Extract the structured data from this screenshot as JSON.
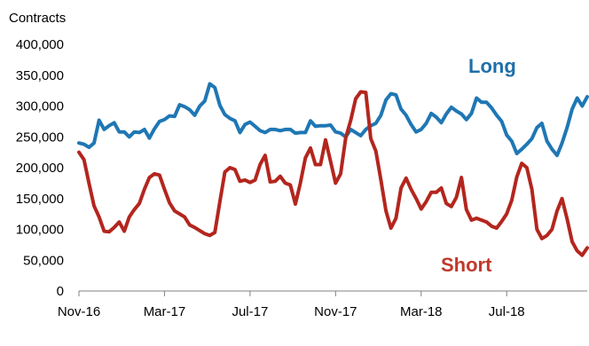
{
  "chart_data": {
    "type": "line",
    "ylabel": "Contracts",
    "ylim": [
      0,
      400000
    ],
    "y_ticks": [
      0,
      50000,
      100000,
      150000,
      200000,
      250000,
      300000,
      350000,
      400000
    ],
    "y_tick_labels": [
      "0",
      "50,000",
      "100,000",
      "150,000",
      "200,000",
      "250,000",
      "300,000",
      "350,000",
      "400,000"
    ],
    "x_ticks": [
      "Nov-16",
      "Mar-17",
      "Jul-17",
      "Nov-17",
      "Mar-18",
      "Jul-18"
    ],
    "x_tick_index": [
      0,
      17,
      34,
      51,
      68,
      85
    ],
    "x_count": 102,
    "grid": false,
    "series": [
      {
        "name": "Long",
        "color": "#1f77b4",
        "label_color": "#1f6fa8",
        "values": [
          240000,
          238000,
          233000,
          240000,
          277000,
          262000,
          268000,
          273000,
          258000,
          258000,
          250000,
          258000,
          257000,
          262000,
          248000,
          263000,
          275000,
          278000,
          284000,
          283000,
          302000,
          299000,
          294000,
          285000,
          300000,
          308000,
          336000,
          330000,
          301000,
          286000,
          280000,
          276000,
          257000,
          270000,
          274000,
          267000,
          260000,
          257000,
          262000,
          262000,
          260000,
          262000,
          262000,
          256000,
          257000,
          257000,
          276000,
          267000,
          268000,
          268000,
          269000,
          258000,
          256000,
          250000,
          262000,
          257000,
          252000,
          262000,
          268000,
          272000,
          285000,
          310000,
          320000,
          318000,
          295000,
          285000,
          270000,
          258000,
          262000,
          272000,
          288000,
          282000,
          273000,
          287000,
          298000,
          292000,
          287000,
          278000,
          288000,
          313000,
          306000,
          306000,
          297000,
          285000,
          275000,
          253000,
          243000,
          223000,
          230000,
          238000,
          247000,
          265000,
          272000,
          243000,
          230000,
          220000,
          240000,
          265000,
          295000,
          313000,
          300000,
          315000
        ]
      },
      {
        "name": "Short",
        "color": "#b3261e",
        "label_color": "#c0392b",
        "values": [
          225000,
          213000,
          175000,
          138000,
          120000,
          97000,
          96000,
          103000,
          112000,
          97000,
          120000,
          132000,
          142000,
          165000,
          184000,
          190000,
          188000,
          165000,
          143000,
          130000,
          125000,
          120000,
          107000,
          103000,
          98000,
          93000,
          90000,
          95000,
          145000,
          193000,
          200000,
          197000,
          178000,
          180000,
          176000,
          180000,
          205000,
          220000,
          177000,
          178000,
          186000,
          175000,
          172000,
          141000,
          175000,
          216000,
          232000,
          205000,
          205000,
          245000,
          210000,
          175000,
          190000,
          248000,
          277000,
          312000,
          323000,
          322000,
          247000,
          227000,
          180000,
          130000,
          102000,
          118000,
          167000,
          183000,
          165000,
          150000,
          133000,
          145000,
          160000,
          160000,
          167000,
          142000,
          137000,
          152000,
          184000,
          132000,
          115000,
          118000,
          115000,
          112000,
          105000,
          102000,
          113000,
          125000,
          147000,
          185000,
          207000,
          200000,
          165000,
          100000,
          85000,
          90000,
          100000,
          130000,
          150000,
          117000,
          80000,
          65000,
          58000,
          70000
        ]
      }
    ]
  }
}
